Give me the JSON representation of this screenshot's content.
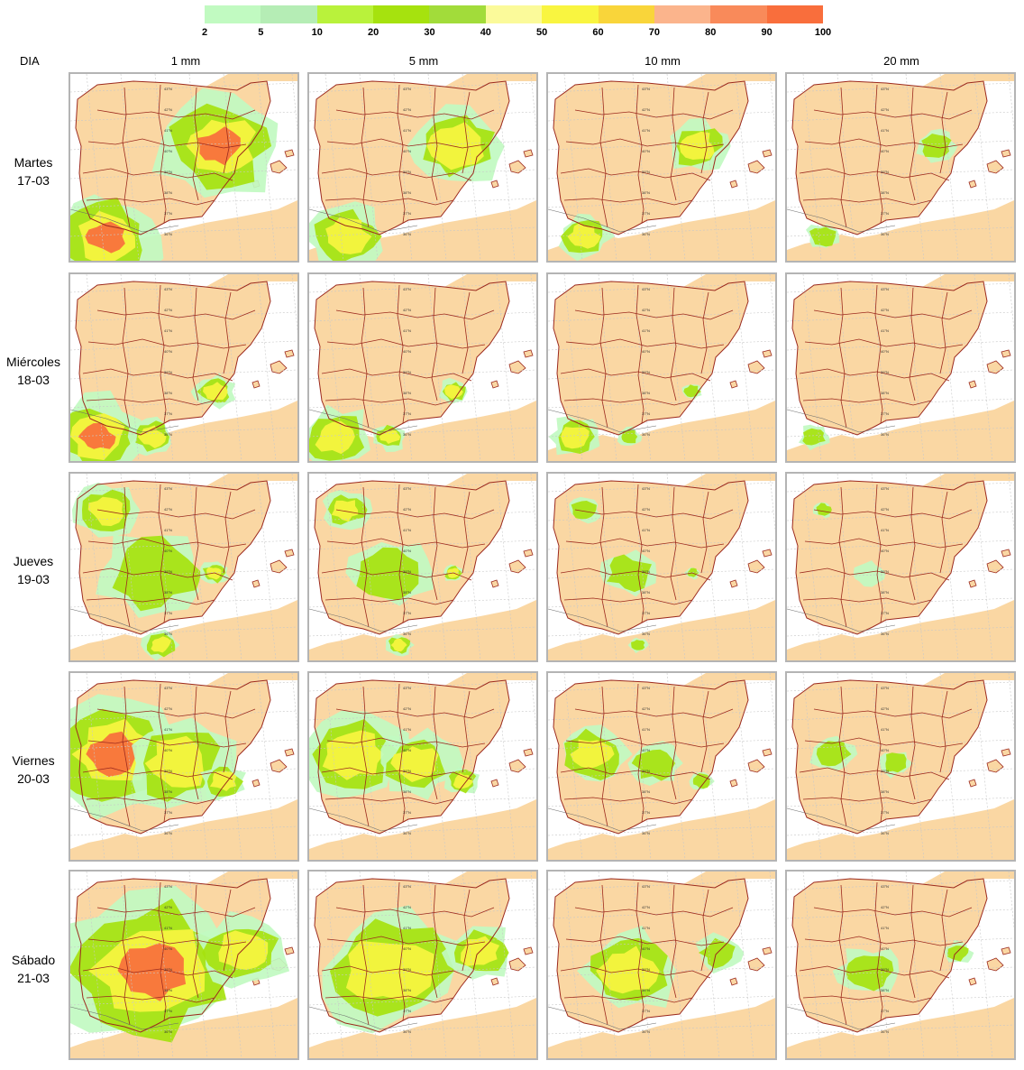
{
  "legend": {
    "ticks": [
      "2",
      "5",
      "10",
      "20",
      "30",
      "40",
      "50",
      "60",
      "70",
      "80",
      "90",
      "100"
    ],
    "colors": [
      "#c1fac1",
      "#b5edb5",
      "#b9f23b",
      "#a6e20e",
      "#a2dc3a",
      "#fbfa9a",
      "#f9f540",
      "#f9d53a",
      "#fbb48c",
      "#f98a5a",
      "#f96e3c"
    ]
  },
  "header": {
    "dia": "DIA",
    "columns": [
      "1 mm",
      "5 mm",
      "10 mm",
      "20 mm"
    ]
  },
  "rows": [
    {
      "day": "Martes",
      "date": "17-03"
    },
    {
      "day": "Miércoles",
      "date": "18-03"
    },
    {
      "day": "Jueves",
      "date": "19-03"
    },
    {
      "day": "Viernes",
      "date": "20-03"
    },
    {
      "day": "Sábado",
      "date": "21-03"
    }
  ],
  "map_colors": {
    "land": "#fad7a3",
    "sea": "#ffffff",
    "border": "#9c2a1e",
    "graticule": "#c8c8c8"
  },
  "grid_labels": [
    "43°N",
    "42°N",
    "41°N",
    "40°N",
    "39°N",
    "38°N",
    "37°N",
    "36°N"
  ]
}
